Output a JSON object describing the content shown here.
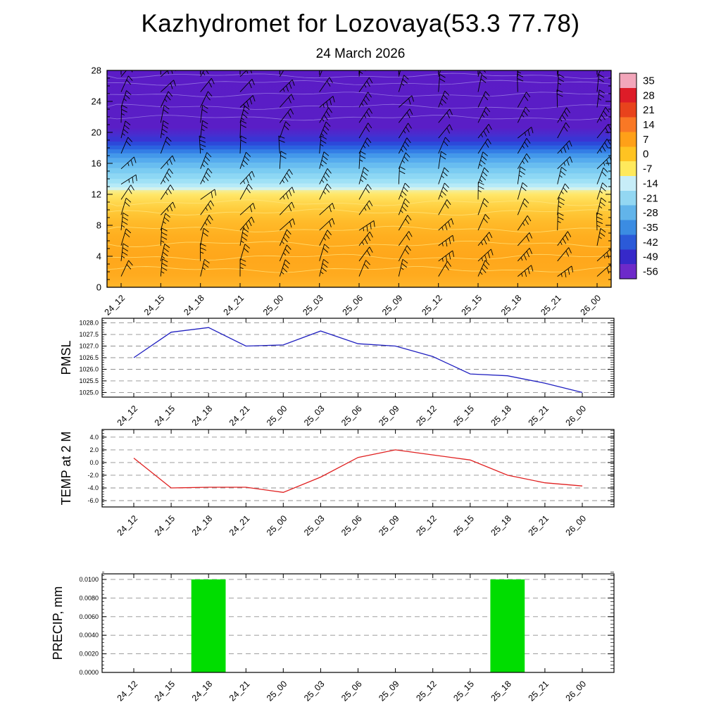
{
  "title": "Kazhydromet for Lozovaya(53.3 77.78)",
  "subtitle": "24 March 2026",
  "time_labels": [
    "24_12",
    "24_15",
    "24_18",
    "24_21",
    "25_00",
    "25_03",
    "25_06",
    "25_09",
    "25_12",
    "25_15",
    "25_18",
    "25_21",
    "26_00"
  ],
  "chart_data": [
    {
      "type": "heatmap",
      "name": "upper-air-cross-section",
      "description": "Time-height temperature contour fill with wind barbs",
      "y_ticks": [
        0,
        4,
        8,
        12,
        16,
        20,
        24,
        28
      ],
      "y_range": [
        0,
        28
      ],
      "colorbar_ticks": [
        35,
        28,
        21,
        14,
        7,
        0,
        -7,
        -14,
        -21,
        -28,
        -35,
        -42,
        -49,
        -56
      ],
      "colorbar_colors": [
        "#f2a6ba",
        "#dd1c28",
        "#e8431c",
        "#f97825",
        "#ffa018",
        "#ffc322",
        "#ffe95c",
        "#c7edf8",
        "#93d7f2",
        "#62b4ea",
        "#3b8ce2",
        "#2b5ad8",
        "#3629c9",
        "#6d2ac9"
      ],
      "gradient_stops": [
        {
          "h": 28,
          "c": "#5b1cc6"
        },
        {
          "h": 20.6,
          "c": "#5a1ec6"
        },
        {
          "h": 19.4,
          "c": "#4132d2"
        },
        {
          "h": 12.9,
          "c": "#bfeef2"
        },
        {
          "h": 12.55,
          "c": "#f2ef9e"
        },
        {
          "h": 12.0,
          "c": "#ffe76a"
        },
        {
          "h": 11.0,
          "c": "#ffd84e"
        },
        {
          "h": 10.0,
          "c": "#ffcb3b"
        },
        {
          "h": 8.5,
          "c": "#ffbb2a"
        },
        {
          "h": 6.5,
          "c": "#ffae1f"
        },
        {
          "h": 4.0,
          "c": "#ffa71b"
        },
        {
          "h": 1.5,
          "c": "#ffab1f"
        },
        {
          "h": 0,
          "c": "#ffb62b"
        }
      ],
      "blue_bands": [
        {
          "top": 19.4,
          "bottom": 18.8,
          "c": "#3a34d4"
        },
        {
          "top": 18.8,
          "bottom": 18.3,
          "c": "#2b49da"
        },
        {
          "top": 18.3,
          "bottom": 17.8,
          "c": "#2a62e0"
        },
        {
          "top": 17.8,
          "bottom": 17.3,
          "c": "#327ee6"
        },
        {
          "top": 17.3,
          "bottom": 16.7,
          "c": "#4398ea"
        },
        {
          "top": 16.7,
          "bottom": 16.1,
          "c": "#55acee"
        },
        {
          "top": 16.1,
          "bottom": 15.4,
          "c": "#68bdf0"
        },
        {
          "top": 15.4,
          "bottom": 14.7,
          "c": "#7bccf2"
        },
        {
          "top": 14.7,
          "bottom": 14.0,
          "c": "#8dd7f4"
        },
        {
          "top": 14.0,
          "bottom": 13.4,
          "c": "#9fe1f6"
        },
        {
          "top": 13.4,
          "bottom": 12.9,
          "c": "#b5eaf8"
        },
        {
          "top": 12.9,
          "bottom": 12.55,
          "c": "#d4f2ec"
        }
      ],
      "contour_lines": {
        "purple": [
          21.9,
          23.3,
          24.9,
          26.4,
          27.3
        ],
        "orange": [
          2.3,
          3.9,
          5.6,
          7.5,
          9.7,
          10.9
        ]
      },
      "wind_barb_grid": {
        "columns": 13,
        "rows": 14
      }
    },
    {
      "type": "line",
      "name": "pmsl",
      "ylabel": "PMSL",
      "line_color": "#2020c0",
      "y_range": [
        1024.8,
        1028.2
      ],
      "y_ticks": [
        1028.0,
        1027.5,
        1027.0,
        1026.5,
        1026.0,
        1025.5,
        1025.0
      ],
      "y_tick_labels": [
        "1028.0",
        "1027.5",
        "1027.0",
        "1026.5",
        "1026.0",
        "1025.5",
        "1025.0"
      ],
      "values": [
        1026.5,
        1027.6,
        1027.8,
        1027.0,
        1027.05,
        1027.65,
        1027.1,
        1027.0,
        1026.55,
        1025.8,
        1025.72,
        1025.4,
        1025.0
      ]
    },
    {
      "type": "line",
      "name": "temp-2m",
      "ylabel": "TEMP at 2 M",
      "line_color": "#e02020",
      "y_range": [
        -7.0,
        5.2
      ],
      "y_ticks": [
        4.0,
        2.0,
        0.0,
        -2.0,
        -4.0,
        -6.0
      ],
      "y_tick_labels": [
        "4.0",
        "2.0",
        "0.0",
        "-2.0",
        "-4.0",
        "-6.0"
      ],
      "values": [
        0.7,
        -4.0,
        -3.9,
        -3.9,
        -4.7,
        -2.3,
        0.8,
        2.0,
        1.2,
        0.4,
        -2.0,
        -3.2,
        -3.7
      ]
    },
    {
      "type": "bar",
      "name": "precip",
      "ylabel": "PRECIP, mm",
      "bar_color": "#00dd00",
      "y_range": [
        0,
        0.0106
      ],
      "y_ticks": [
        0.01,
        0.008,
        0.006,
        0.004,
        0.002,
        0.0
      ],
      "y_tick_labels": [
        "0.0100",
        "0.0080",
        "0.0060",
        "0.0040",
        "0.0020",
        "0.0000"
      ],
      "values": [
        0,
        0,
        0.01,
        0,
        0,
        0,
        0,
        0,
        0,
        0,
        0.01,
        0,
        0
      ]
    }
  ]
}
